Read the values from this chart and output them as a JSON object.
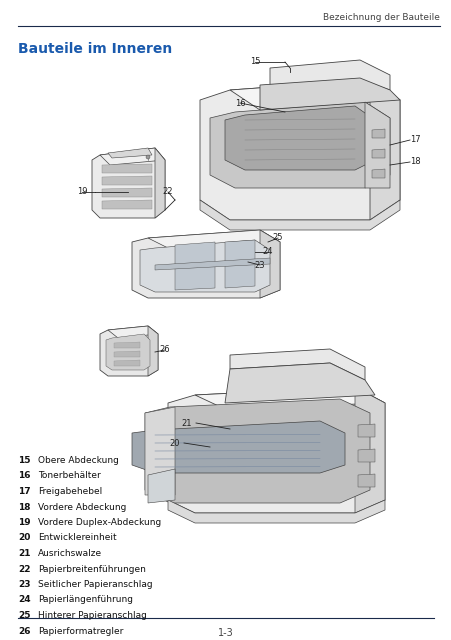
{
  "page_title_right": "Bezeichnung der Bauteile",
  "section_title": "Bauteile im Inneren",
  "section_title_color": "#1a5aad",
  "background_color": "#ffffff",
  "header_line_color": "#1a2a4a",
  "footer_line_color": "#1a2a4a",
  "page_number": "1-3",
  "labels": [
    {
      "num": "15",
      "text": "Obere Abdeckung"
    },
    {
      "num": "16",
      "text": "Tonerbehälter"
    },
    {
      "num": "17",
      "text": "Freigabehebel"
    },
    {
      "num": "18",
      "text": "Vordere Abdeckung"
    },
    {
      "num": "19",
      "text": "Vordere Duplex-Abdeckung"
    },
    {
      "num": "20",
      "text": "Entwicklereinheit"
    },
    {
      "num": "21",
      "text": "Ausrichswalze"
    },
    {
      "num": "22",
      "text": "Papierbreitenführungen"
    },
    {
      "num": "23",
      "text": "Seitlicher Papieranschlag"
    },
    {
      "num": "24",
      "text": "Papierlängenführung"
    },
    {
      "num": "25",
      "text": "Hinterer Papieranschlag"
    },
    {
      "num": "26",
      "text": "Papierformatregler"
    }
  ],
  "font_size_title": 10,
  "font_size_label": 6.5,
  "font_size_annotation": 6.0,
  "font_size_page": 7,
  "font_size_header": 6.5
}
